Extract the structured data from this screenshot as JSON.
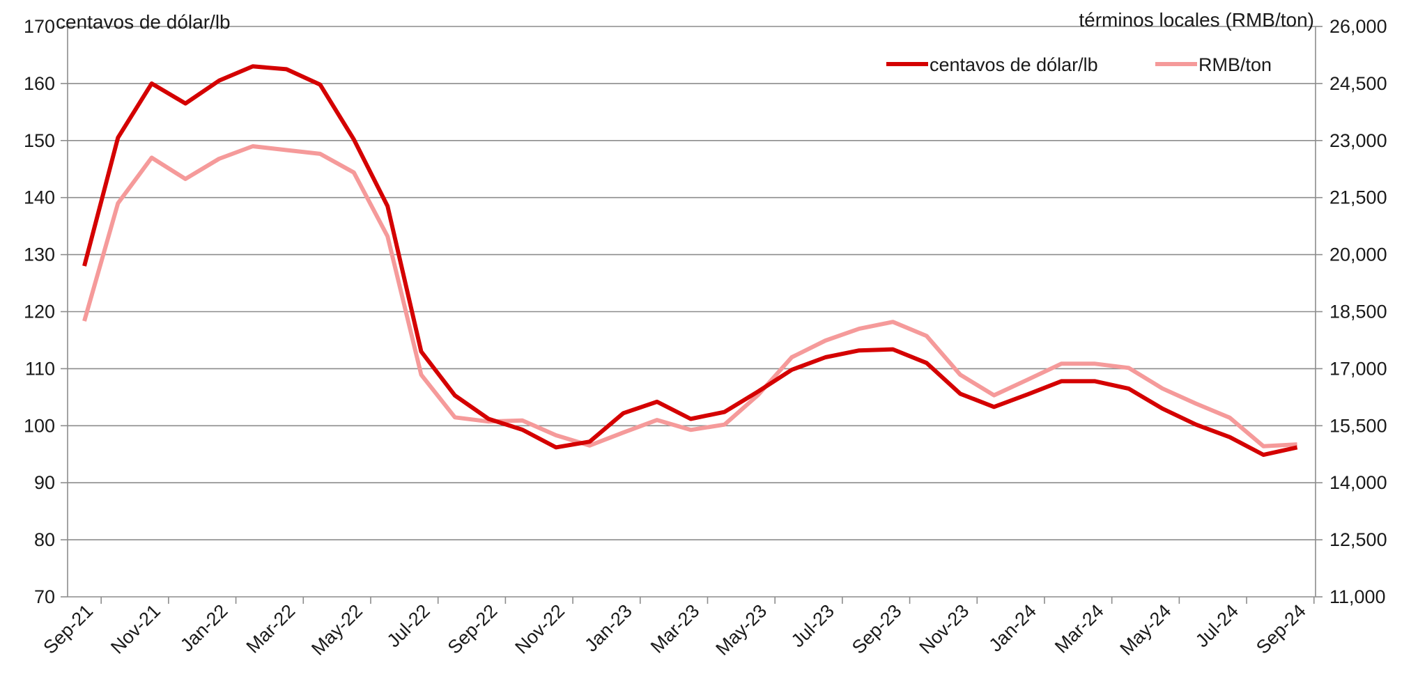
{
  "chart_data": {
    "type": "line",
    "ylabel_left": "centavos de dólar/lb",
    "ylabel_right": "términos locales (RMB/ton)",
    "ylim_left": [
      70,
      170
    ],
    "ylim_right": [
      11000,
      26000
    ],
    "yticks_left": [
      "70",
      "80",
      "90",
      "100",
      "110",
      "120",
      "130",
      "140",
      "150",
      "160",
      "170"
    ],
    "yticks_right": [
      "11,000",
      "12,500",
      "14,000",
      "15,500",
      "17,000",
      "18,500",
      "20,000",
      "21,500",
      "23,000",
      "24,500",
      "26,000"
    ],
    "xtick_labels": [
      "Sep-21",
      "Nov-21",
      "Jan-22",
      "Mar-22",
      "May-22",
      "Jul-22",
      "Sep-22",
      "Nov-22",
      "Jan-23",
      "Mar-23",
      "May-23",
      "Jul-23",
      "Sep-23",
      "Nov-23",
      "Jan-24",
      "Mar-24",
      "May-24",
      "Jul-24",
      "Sep-24"
    ],
    "x": [
      "2021-09",
      "2021-10",
      "2021-11",
      "2021-12",
      "2022-01",
      "2022-02",
      "2022-03",
      "2022-04",
      "2022-05",
      "2022-06",
      "2022-07",
      "2022-08",
      "2022-09",
      "2022-10",
      "2022-11",
      "2022-12",
      "2023-01",
      "2023-02",
      "2023-03",
      "2023-04",
      "2023-05",
      "2023-06",
      "2023-07",
      "2023-08",
      "2023-09",
      "2023-10",
      "2023-11",
      "2023-12",
      "2024-01",
      "2024-02",
      "2024-03",
      "2024-04",
      "2024-05",
      "2024-06",
      "2024-07",
      "2024-08",
      "2024-09"
    ],
    "legend_position": "top-right",
    "grid": true,
    "series": [
      {
        "name": "centavos de dólar/lb",
        "axis": "left",
        "color": "#d40000",
        "values": [
          128,
          150.5,
          160,
          156.5,
          160.5,
          163,
          162.5,
          159.8,
          150.2,
          138.5,
          113,
          105.3,
          101.2,
          99.3,
          96.2,
          97.2,
          102.2,
          104.2,
          101.2,
          102.4,
          106,
          109.8,
          112,
          113.2,
          113.4,
          111,
          105.6,
          103.3,
          105.5,
          107.8,
          107.8,
          106.5,
          103,
          100.2,
          98,
          94.9,
          96.2
        ]
      },
      {
        "name": "RMB/ton",
        "axis": "right",
        "color": "#f59a9a",
        "values": [
          18250,
          21350,
          22550,
          21990,
          22520,
          22850,
          22750,
          22650,
          22160,
          20480,
          16840,
          15720,
          15610,
          15640,
          15250,
          14980,
          15320,
          15650,
          15390,
          15530,
          16310,
          17300,
          17740,
          18050,
          18230,
          17860,
          16840,
          16300,
          16710,
          17130,
          17130,
          17020,
          16480,
          16080,
          15710,
          14960,
          15010
        ]
      }
    ]
  }
}
